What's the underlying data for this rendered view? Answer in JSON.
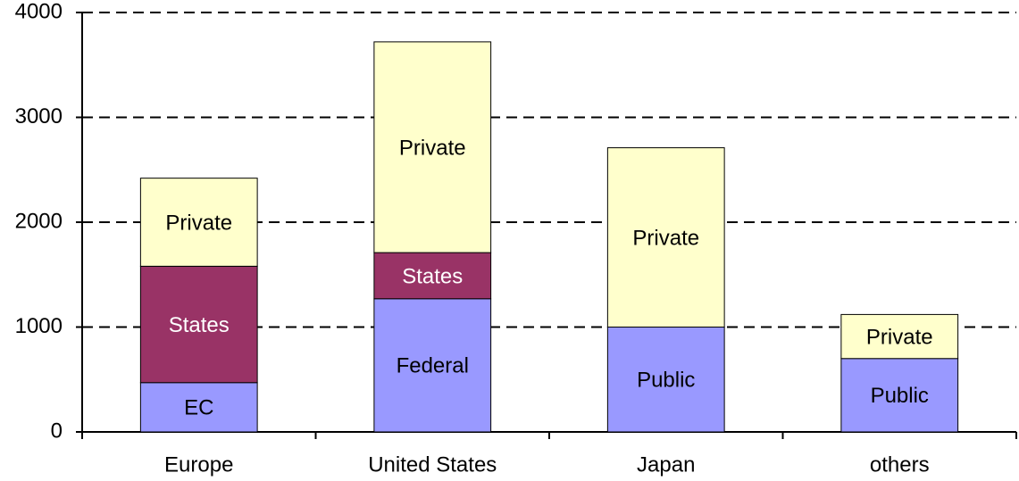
{
  "chart_data": {
    "type": "stacked-bar",
    "categories": [
      "Europe",
      "United States",
      "Japan",
      "others"
    ],
    "stacks": [
      {
        "segments": [
          {
            "name": "EC",
            "color": "#9999ff",
            "value": 470
          },
          {
            "name": "States",
            "color": "#993366",
            "value": 1110
          },
          {
            "name": "Private",
            "color": "#ffffcc",
            "value": 840
          }
        ]
      },
      {
        "segments": [
          {
            "name": "Federal",
            "color": "#9999ff",
            "value": 1270
          },
          {
            "name": "States",
            "color": "#993366",
            "value": 440
          },
          {
            "name": "Private",
            "color": "#ffffcc",
            "value": 2010
          }
        ]
      },
      {
        "segments": [
          {
            "name": "Public",
            "color": "#9999ff",
            "value": 1000
          },
          {
            "name": "Private",
            "color": "#ffffcc",
            "value": 1710
          }
        ]
      },
      {
        "segments": [
          {
            "name": "Public",
            "color": "#9999ff",
            "value": 700
          },
          {
            "name": "Private",
            "color": "#ffffcc",
            "value": 420
          }
        ]
      }
    ],
    "ylim": [
      0,
      4000
    ],
    "yticks": [
      0,
      1000,
      2000,
      3000,
      4000
    ],
    "grid": true
  }
}
